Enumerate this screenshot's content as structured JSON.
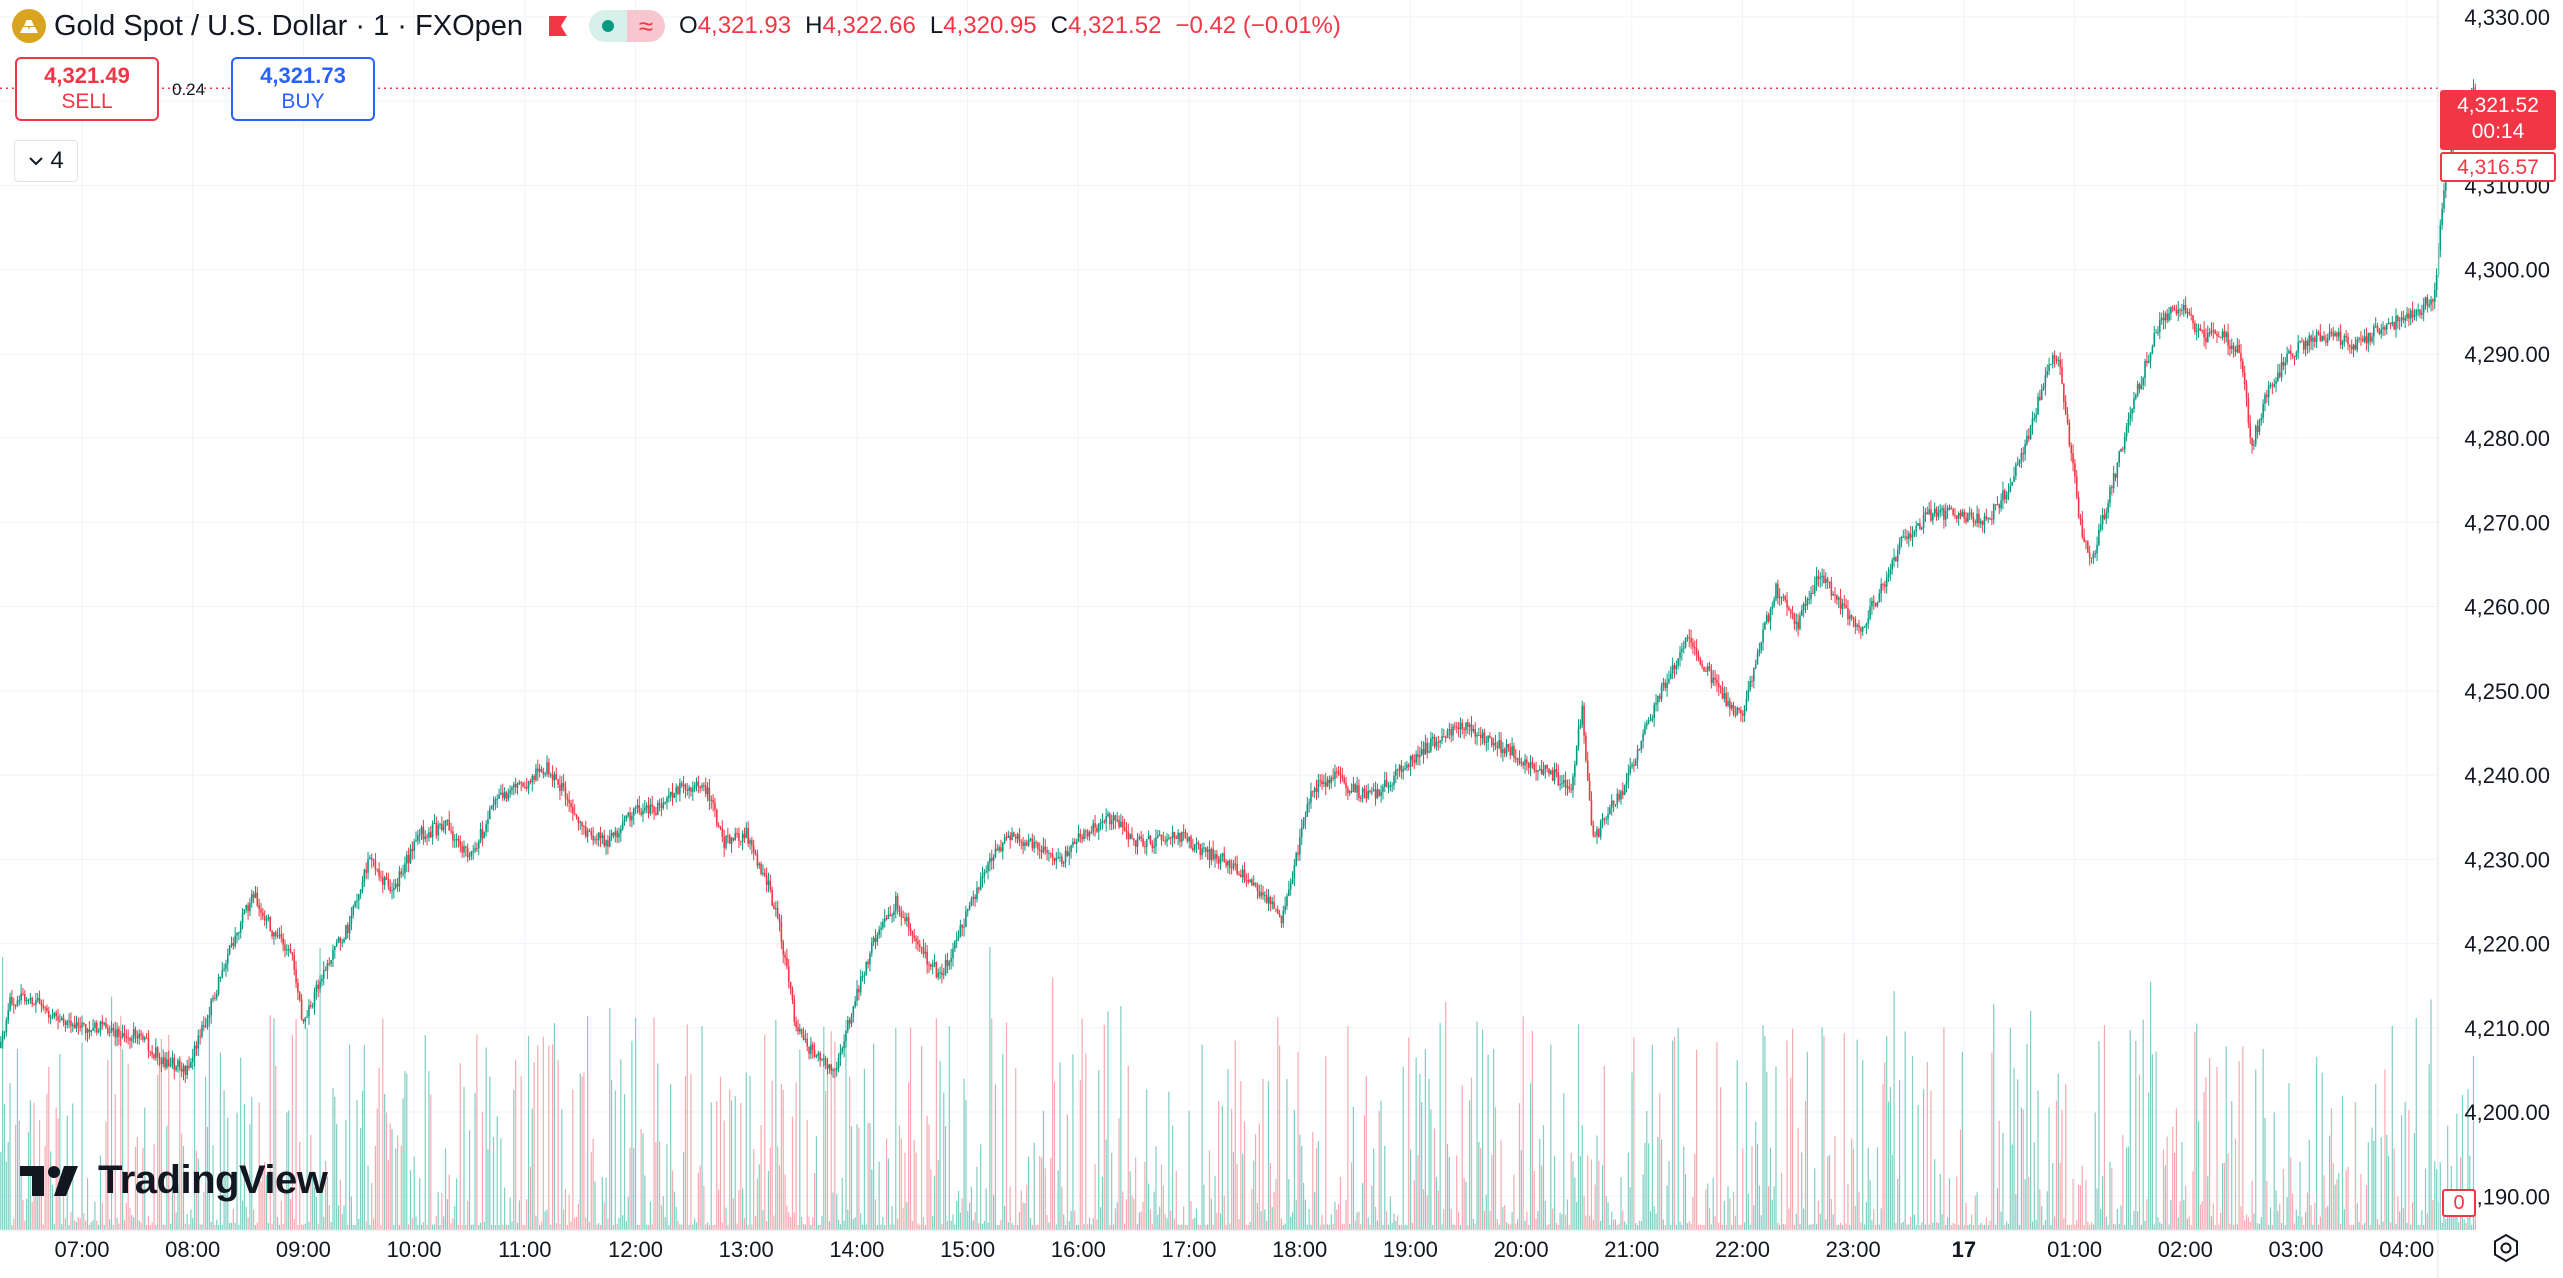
{
  "legend": {
    "title": "Gold Spot / U.S. Dollar · 1 · FXOpen",
    "o_label": "O",
    "o_value": "4,321.93",
    "h_label": "H",
    "h_value": "4,322.66",
    "l_label": "L",
    "l_value": "4,320.95",
    "c_label": "C",
    "c_value": "4,321.52",
    "change": "−0.42 (−0.01%)",
    "symbol_icon": "gold-bars-icon",
    "flag_icon": "flag-icon"
  },
  "trade": {
    "sell_price": "4,321.49",
    "sell_label": "SELL",
    "spread": "0.24",
    "buy_price": "4,321.73",
    "buy_label": "BUY"
  },
  "collapse": {
    "count": "4"
  },
  "watermark": {
    "text": "TradingView"
  },
  "price_scale": {
    "current_price": "4,321.52",
    "countdown": "00:14",
    "prev_price": "4,316.57",
    "volume_value": "0"
  },
  "colors": {
    "up": "#089981",
    "down": "#f23645",
    "grid": "#f0f3fa",
    "up_volume": "#7fcfc3",
    "down_volume": "#f7a9b0"
  },
  "chart_data": {
    "type": "candlestick",
    "y_ticks": [
      "4,190.00",
      "4,200.00",
      "4,210.00",
      "4,220.00",
      "4,230.00",
      "4,240.00",
      "4,250.00",
      "4,260.00",
      "4,270.00",
      "4,280.00",
      "4,290.00",
      "4,300.00",
      "4,310.00",
      "4,320.00",
      "4,330.00"
    ],
    "y_tick_values": [
      4190,
      4200,
      4210,
      4220,
      4230,
      4240,
      4250,
      4260,
      4270,
      4280,
      4290,
      4300,
      4310,
      4320,
      4330
    ],
    "x_ticks": [
      "07:00",
      "08:00",
      "09:00",
      "10:00",
      "11:00",
      "12:00",
      "13:00",
      "14:00",
      "15:00",
      "16:00",
      "17:00",
      "18:00",
      "19:00",
      "20:00",
      "21:00",
      "22:00",
      "23:00",
      "17",
      "01:00",
      "02:00",
      "03:00",
      "04:00"
    ],
    "x_start": "06:15",
    "ylim": [
      4186,
      4332
    ],
    "price_path": [
      [
        6.25,
        4207
      ],
      [
        6.35,
        4213
      ],
      [
        6.5,
        4214
      ],
      [
        6.7,
        4212
      ],
      [
        6.95,
        4210
      ],
      [
        7.2,
        4210
      ],
      [
        7.5,
        4209
      ],
      [
        7.75,
        4206
      ],
      [
        7.95,
        4205
      ],
      [
        8.15,
        4212
      ],
      [
        8.35,
        4220
      ],
      [
        8.55,
        4226
      ],
      [
        8.7,
        4222
      ],
      [
        8.9,
        4218
      ],
      [
        9.0,
        4210
      ],
      [
        9.15,
        4216
      ],
      [
        9.4,
        4222
      ],
      [
        9.6,
        4230
      ],
      [
        9.8,
        4226
      ],
      [
        10.05,
        4233
      ],
      [
        10.3,
        4234
      ],
      [
        10.5,
        4230
      ],
      [
        10.75,
        4237
      ],
      [
        11.0,
        4239
      ],
      [
        11.2,
        4241
      ],
      [
        11.35,
        4238
      ],
      [
        11.55,
        4233
      ],
      [
        11.75,
        4232
      ],
      [
        12.0,
        4236
      ],
      [
        12.2,
        4236
      ],
      [
        12.45,
        4239
      ],
      [
        12.65,
        4238
      ],
      [
        12.8,
        4232
      ],
      [
        13.0,
        4233
      ],
      [
        13.2,
        4227
      ],
      [
        13.3,
        4222
      ],
      [
        13.45,
        4210
      ],
      [
        13.6,
        4207
      ],
      [
        13.8,
        4205
      ],
      [
        13.95,
        4212
      ],
      [
        14.15,
        4220
      ],
      [
        14.35,
        4225
      ],
      [
        14.55,
        4220
      ],
      [
        14.75,
        4216
      ],
      [
        14.95,
        4222
      ],
      [
        15.2,
        4230
      ],
      [
        15.4,
        4233
      ],
      [
        15.65,
        4231
      ],
      [
        15.85,
        4230
      ],
      [
        16.05,
        4233
      ],
      [
        16.3,
        4235
      ],
      [
        16.5,
        4232
      ],
      [
        16.7,
        4232
      ],
      [
        16.9,
        4233
      ],
      [
        17.1,
        4231
      ],
      [
        17.3,
        4230
      ],
      [
        17.5,
        4228
      ],
      [
        17.7,
        4225
      ],
      [
        17.85,
        4223
      ],
      [
        18.0,
        4232
      ],
      [
        18.1,
        4238
      ],
      [
        18.3,
        4240
      ],
      [
        18.5,
        4238
      ],
      [
        18.7,
        4238
      ],
      [
        18.95,
        4241
      ],
      [
        19.2,
        4244
      ],
      [
        19.45,
        4246
      ],
      [
        19.7,
        4244
      ],
      [
        19.9,
        4243
      ],
      [
        20.1,
        4241
      ],
      [
        20.3,
        4240
      ],
      [
        20.45,
        4238
      ],
      [
        20.55,
        4248
      ],
      [
        20.65,
        4232
      ],
      [
        20.8,
        4236
      ],
      [
        20.95,
        4239
      ],
      [
        21.1,
        4245
      ],
      [
        21.3,
        4251
      ],
      [
        21.5,
        4256
      ],
      [
        21.7,
        4252
      ],
      [
        21.9,
        4248
      ],
      [
        22.0,
        4247
      ],
      [
        22.15,
        4255
      ],
      [
        22.3,
        4262
      ],
      [
        22.5,
        4258
      ],
      [
        22.7,
        4264
      ],
      [
        22.9,
        4260
      ],
      [
        23.05,
        4257
      ],
      [
        23.25,
        4262
      ],
      [
        23.45,
        4268
      ],
      [
        23.7,
        4271
      ],
      [
        23.95,
        4271
      ],
      [
        24.2,
        4270
      ],
      [
        24.4,
        4274
      ],
      [
        24.6,
        4281
      ],
      [
        24.75,
        4288
      ],
      [
        24.85,
        4290
      ],
      [
        24.95,
        4280
      ],
      [
        25.05,
        4270
      ],
      [
        25.15,
        4265
      ],
      [
        25.35,
        4275
      ],
      [
        25.55,
        4285
      ],
      [
        25.75,
        4293
      ],
      [
        25.95,
        4296
      ],
      [
        26.15,
        4292
      ],
      [
        26.35,
        4292
      ],
      [
        26.5,
        4290
      ],
      [
        26.6,
        4279
      ],
      [
        26.75,
        4286
      ],
      [
        26.95,
        4290
      ],
      [
        27.15,
        4292
      ],
      [
        27.35,
        4292
      ],
      [
        27.55,
        4291
      ],
      [
        27.75,
        4293
      ],
      [
        27.95,
        4294
      ],
      [
        28.1,
        4295
      ],
      [
        28.25,
        4297
      ],
      [
        28.35,
        4312
      ],
      [
        28.45,
        4316
      ],
      [
        28.55,
        4319
      ],
      [
        28.62,
        4321.5
      ]
    ],
    "volume_max": 100
  }
}
